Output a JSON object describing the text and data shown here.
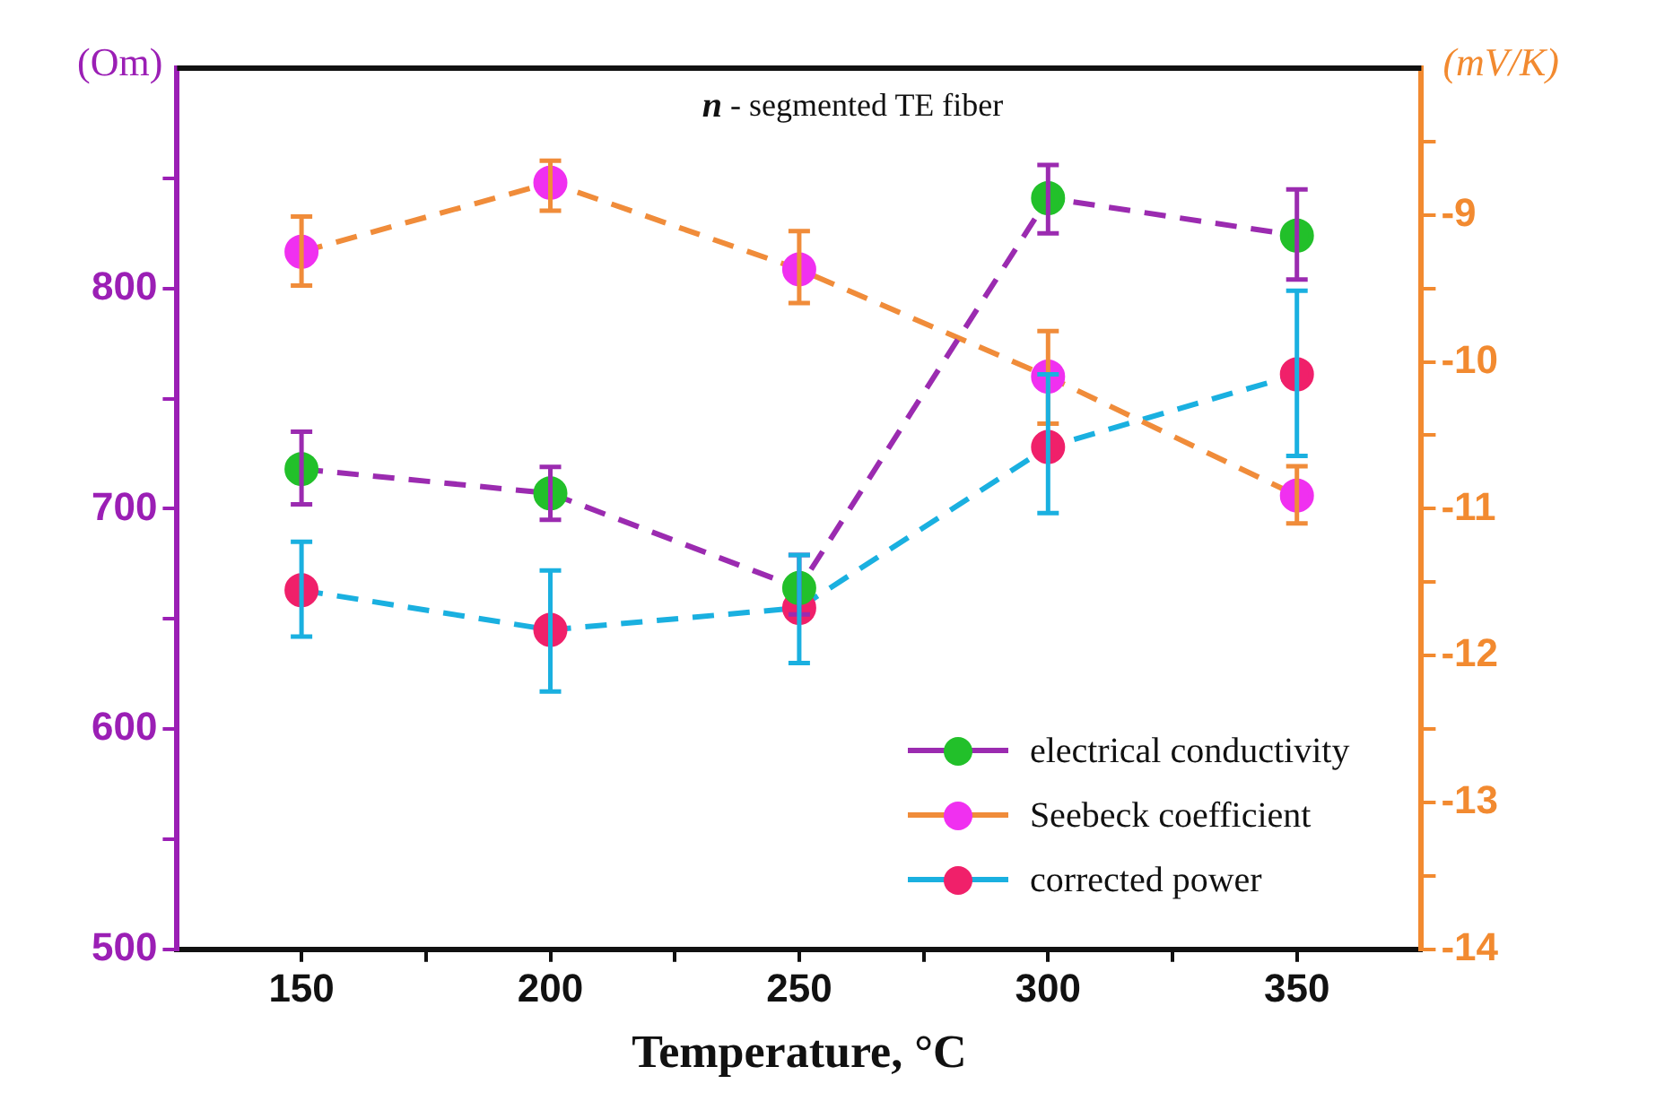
{
  "chart_data": {
    "type": "line",
    "title": "n - segmented TE fiber",
    "xlabel": "Temperature, °C",
    "ylabel": "(Om)",
    "y2label": "(mV/K)",
    "x": [
      150,
      200,
      250,
      300,
      350
    ],
    "series": [
      {
        "name": "electrical conductivity",
        "color": "#9b2bb0",
        "colors": [
          "#22c02a",
          "#22c02a",
          "#22c02a",
          "#22c02a",
          "#22c02a"
        ],
        "values": [
          718,
          707,
          664,
          841,
          824
        ],
        "errors": [
          [
            702,
            735
          ],
          [
            695,
            719
          ],
          [
            652,
            679
          ],
          [
            825,
            856
          ],
          [
            804,
            845
          ]
        ]
      },
      {
        "name": "Seebeck coefficient",
        "color": "#f08c3a",
        "colors": [
          "#f030f0",
          "#f030f0",
          "#f030f0",
          "#f030f0",
          "#f030f0"
        ],
        "axis": "y2",
        "values": [
          -9.25,
          -8.78,
          -9.37,
          -10.1,
          -10.91
        ],
        "errors": [
          [
            -9.48,
            -9.01
          ],
          [
            -8.97,
            -8.63
          ],
          [
            -9.6,
            -9.11
          ],
          [
            -10.42,
            -9.79
          ],
          [
            -11.1,
            -10.71
          ]
        ]
      },
      {
        "name": "corrected power",
        "color": "#1ab0e0",
        "colors": [
          "#f0206a",
          "#f0206a",
          "#f0206a",
          "#f0206a",
          "#f0206a"
        ],
        "values": [
          663,
          645,
          655,
          728,
          761
        ],
        "errors": [
          [
            642,
            685
          ],
          [
            617,
            672
          ],
          [
            630,
            679
          ],
          [
            698,
            761
          ],
          [
            724,
            799
          ]
        ]
      }
    ],
    "xlim": [
      125,
      375
    ],
    "xticks": [
      150,
      {
        "value": 175,
        "label": null
      },
      200,
      {
        "value": 225,
        "label": null
      },
      250,
      {
        "value": 275,
        "label": null
      },
      300,
      {
        "value": 325,
        "label": null
      },
      350
    ],
    "ylim": [
      500,
      900
    ],
    "yticks": [
      500,
      {
        "value": 550,
        "label": null
      },
      600,
      {
        "value": 650,
        "label": null
      },
      700,
      {
        "value": 750,
        "label": null
      },
      800,
      {
        "value": 850,
        "label": null
      }
    ],
    "y2lim": [
      -14,
      -8
    ],
    "y2ticks": [
      -14,
      {
        "value": -13.5,
        "label": null
      },
      -13,
      {
        "value": -12.5,
        "label": null
      },
      -12,
      {
        "value": -11.5,
        "label": null
      },
      -11,
      {
        "value": -10.5,
        "label": null
      },
      -10,
      {
        "value": -9.5,
        "label": null
      },
      -9,
      {
        "value": -8.5,
        "label": null
      }
    ],
    "grid": false,
    "legend": "bottom right",
    "marker": "circle",
    "line_style": "dashed"
  }
}
